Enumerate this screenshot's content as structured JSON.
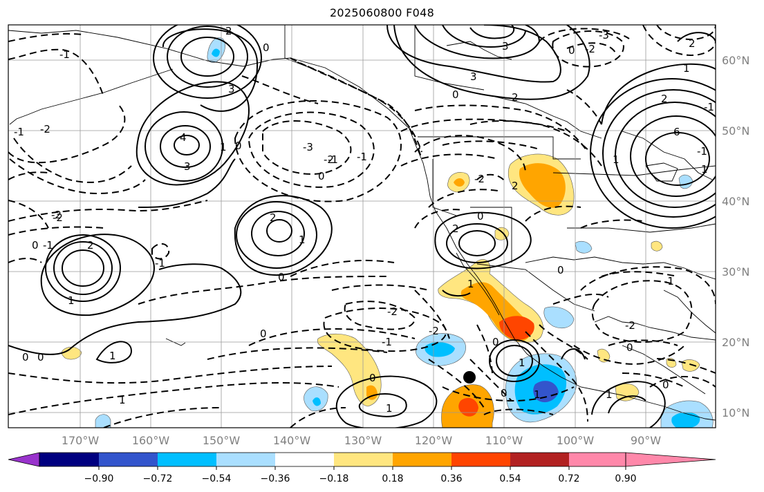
{
  "title": "2025060800 F048",
  "map": {
    "lon_labels": [
      "170°W",
      "160°W",
      "150°W",
      "140°W",
      "130°W",
      "120°W",
      "110°W",
      "100°W",
      "90°W"
    ],
    "lat_labels": [
      "60°N",
      "50°N",
      "40°N",
      "30°N",
      "20°N",
      "10°N"
    ],
    "contour_labels": [
      "2",
      "3",
      "4",
      "-1",
      "0",
      "-2",
      "-3",
      "-1",
      "0",
      "1",
      "2",
      "3",
      "-2",
      "-1",
      "0",
      "1",
      "2",
      "3",
      "6",
      "1",
      "2",
      "2",
      "2",
      "0",
      "1",
      "-2",
      "-1",
      "0",
      "0",
      "1",
      "0",
      "1",
      "-2",
      "0",
      "-1",
      "-2",
      "2",
      "1",
      "0",
      "-2",
      "0",
      "1",
      "1",
      "0",
      "0",
      "1",
      "1",
      "-1",
      "0",
      "-1",
      "1",
      "0",
      "2",
      "0",
      "0",
      "-2",
      "1",
      "-1",
      "0",
      "-3",
      "3",
      "-2",
      "-1",
      "-2",
      "-1"
    ],
    "marker": "filled-circle"
  },
  "colorbar": {
    "colors": [
      "#9933cc",
      "#000080",
      "#3355cc",
      "#00bfff",
      "#aadfff",
      "#ffffff",
      "#ffe680",
      "#ffa500",
      "#ff4500",
      "#b22222",
      "#ff88aa"
    ],
    "tick_labels": [
      "−0.90",
      "−0.72",
      "−0.54",
      "−0.36",
      "−0.18",
      "0.18",
      "0.36",
      "0.54",
      "0.72",
      "0.90"
    ]
  },
  "chart_data": {
    "type": "map",
    "title": "2025060800 F048",
    "lon_range": [
      -180,
      -80
    ],
    "lat_range": [
      7,
      65
    ],
    "shading_levels": [
      -0.9,
      -0.72,
      -0.54,
      -0.36,
      -0.18,
      0.18,
      0.36,
      0.54,
      0.72,
      0.9
    ],
    "marker_location": {
      "lon": -115,
      "lat": 15
    }
  }
}
